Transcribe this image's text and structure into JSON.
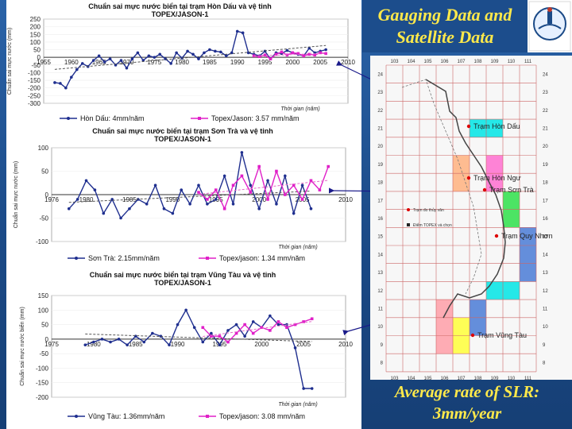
{
  "slide": {
    "title_line1": "Gauging Data and",
    "title_line2": "Satellite Data",
    "conclusion_line1": "Average rate of SLR:",
    "conclusion_line2": "3mm/year"
  },
  "map": {
    "top_ticks": [
      "103",
      "104",
      "105",
      "106",
      "107",
      "108",
      "109",
      "110",
      "111"
    ],
    "bottom_ticks": [
      "103",
      "104",
      "105",
      "106",
      "107",
      "108",
      "109",
      "110",
      "111"
    ],
    "lat_ticks": [
      "24",
      "23",
      "22",
      "21",
      "20",
      "19",
      "18",
      "17",
      "16",
      "15",
      "14",
      "13",
      "12",
      "11",
      "10",
      "9",
      "8"
    ],
    "stations": [
      "Trạm Hòn Dấu",
      "Trạm Hòn Ngư",
      "Trạm Sơn Trà",
      "Trạm Quy Nhơn",
      "Trạm Vũng Tàu"
    ],
    "legend": [
      "Trạm đo thủy văn",
      "Điểm TOPEX và chọn"
    ]
  },
  "colors": {
    "gauge": "#1f2f8f",
    "satellite": "#e020c8",
    "trend": "#555555",
    "accent_text": "#ffe94a",
    "arrow": "#1a1a8a"
  },
  "chart_data": [
    {
      "type": "line",
      "title": "Chuẩn sai mực nước biển tại trạm Hòn Dấu và vệ tinh TOPEX/JASON-1",
      "xlabel": "Thời gian (năm)",
      "ylabel": "Chuẩn sai mực nước (mm)",
      "xlim": [
        1955,
        2010
      ],
      "ylim": [
        -300,
        250
      ],
      "xticks": [
        "1955",
        "1960",
        "1965",
        "1970",
        "1975",
        "1980",
        "1985",
        "1990",
        "1995",
        "2000",
        "2005",
        "2010"
      ],
      "yticks": [
        "250",
        "200",
        "150",
        "100",
        "50",
        "0",
        "-50",
        "-100",
        "-150",
        "-200",
        "-250",
        "-300"
      ],
      "series": [
        {
          "name": "Hòn Dấu: 4mm/năm",
          "x": [
            1957,
            1958,
            1959,
            1960,
            1961,
            1962,
            1963,
            1964,
            1965,
            1966,
            1967,
            1968,
            1969,
            1970,
            1971,
            1972,
            1973,
            1974,
            1975,
            1976,
            1977,
            1978,
            1979,
            1980,
            1981,
            1982,
            1983,
            1984,
            1985,
            1986,
            1987,
            1988,
            1989,
            1990,
            1991,
            1992,
            1993,
            1994,
            1995,
            1996,
            1997,
            1998,
            1999,
            2000,
            2001,
            2002,
            2003,
            2004,
            2005,
            2006
          ],
          "y": [
            -165,
            -170,
            -200,
            -130,
            -80,
            -40,
            -60,
            -20,
            10,
            -30,
            -10,
            -50,
            -20,
            -70,
            -10,
            30,
            -20,
            10,
            0,
            20,
            -10,
            -40,
            30,
            -5,
            40,
            20,
            -10,
            30,
            50,
            40,
            35,
            10,
            30,
            170,
            160,
            30,
            20,
            10,
            40,
            -10,
            30,
            25,
            45,
            30,
            20,
            10,
            60,
            30,
            40,
            50
          ]
        },
        {
          "name": "Topex/Jason: 3.57 mm/năm",
          "x": [
            1993,
            1994,
            1995,
            1996,
            1997,
            1998,
            1999,
            2000,
            2001,
            2002,
            2003,
            2004,
            2005,
            2006
          ],
          "y": [
            10,
            5,
            15,
            -10,
            20,
            35,
            15,
            30,
            25,
            10,
            20,
            15,
            30,
            25
          ]
        }
      ],
      "legend": [
        "Hòn Dấu: 4mm/năm",
        "Topex/Jason: 3.57 mm/năm"
      ]
    },
    {
      "type": "line",
      "title": "Chuẩn sai mực nước biển tại trạm Sơn Trà và vệ tinh TOPEX/JASON-1",
      "xlabel": "Thời gian (năm)",
      "ylabel": "Chuẩn sai mực nước (mm)",
      "xlim": [
        1976,
        2010
      ],
      "ylim": [
        -100,
        100
      ],
      "xticks": [
        "1976",
        "1980",
        "1985",
        "1990",
        "1995",
        "2000",
        "2005",
        "2010"
      ],
      "yticks": [
        "100",
        "50",
        "0",
        "-50",
        "-100"
      ],
      "series": [
        {
          "name": "Sơn Trà: 2.15mm/năm",
          "x": [
            1978,
            1979,
            1980,
            1981,
            1982,
            1983,
            1984,
            1985,
            1986,
            1987,
            1988,
            1989,
            1990,
            1991,
            1992,
            1993,
            1994,
            1995,
            1996,
            1997,
            1998,
            1999,
            2000,
            2001,
            2002,
            2003,
            2004,
            2005,
            2006
          ],
          "y": [
            -30,
            -10,
            30,
            10,
            -40,
            -10,
            -50,
            -30,
            -10,
            -20,
            20,
            -30,
            -40,
            10,
            -20,
            20,
            -20,
            -10,
            40,
            -20,
            90,
            20,
            -30,
            30,
            -20,
            40,
            -40,
            20,
            -30
          ]
        },
        {
          "name": "Topex/jason: 1.34 mm/năm",
          "x": [
            1993,
            1994,
            1995,
            1996,
            1997,
            1998,
            1999,
            2000,
            2001,
            2002,
            2003,
            2004,
            2005,
            2006,
            2007,
            2008
          ],
          "y": [
            5,
            -10,
            10,
            -30,
            20,
            40,
            5,
            60,
            -10,
            50,
            0,
            20,
            -10,
            30,
            10,
            60
          ]
        }
      ],
      "legend": [
        "Sơn Trà: 2.15mm/năm",
        "Topex/jason: 1.34 mm/năm"
      ]
    },
    {
      "type": "line",
      "title": "Chuẩn sai mực nước biển tại trạm Vũng Tàu và vệ tinh TOPEX/JASON-1",
      "xlabel": "Thời gian (năm)",
      "ylabel": "Chuẩn sai mực nước biển (mm)",
      "xlim": [
        1975,
        2010
      ],
      "ylim": [
        -200,
        150
      ],
      "xticks": [
        "1975",
        "1980",
        "1985",
        "1990",
        "1995",
        "2000",
        "2005",
        "2010"
      ],
      "yticks": [
        "150",
        "100",
        "50",
        "0",
        "-50",
        "-100",
        "-150",
        "-200"
      ],
      "series": [
        {
          "name": "Vũng Tàu: 1.36mm/năm",
          "x": [
            1979,
            1980,
            1981,
            1982,
            1983,
            1984,
            1985,
            1986,
            1987,
            1988,
            1989,
            1990,
            1991,
            1992,
            1993,
            1994,
            1995,
            1996,
            1997,
            1998,
            1999,
            2000,
            2001,
            2002,
            2003,
            2004,
            2005,
            2006
          ],
          "y": [
            -20,
            -10,
            0,
            -10,
            0,
            -20,
            10,
            -10,
            20,
            10,
            -20,
            50,
            100,
            40,
            -10,
            20,
            -20,
            30,
            50,
            10,
            60,
            40,
            80,
            50,
            50,
            -30,
            -170,
            -170
          ]
        },
        {
          "name": "Topex/jason: 3.08 mm/năm",
          "x": [
            1993,
            1994,
            1995,
            1996,
            1997,
            1998,
            1999,
            2000,
            2001,
            2002,
            2003,
            2004,
            2005,
            2006
          ],
          "y": [
            40,
            10,
            10,
            -10,
            20,
            50,
            20,
            40,
            30,
            60,
            40,
            50,
            60,
            70
          ]
        }
      ],
      "legend": [
        "Vũng Tàu: 1.36mm/năm",
        "Topex/jason: 3.08 mm/năm"
      ]
    }
  ]
}
